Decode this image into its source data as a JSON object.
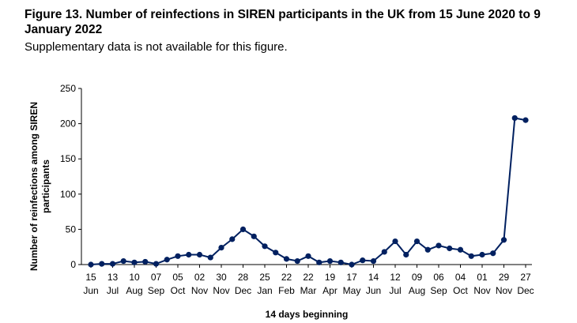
{
  "title": "Figure 13. Number of reinfections in SIREN participants in the UK from 15 June 2020 to 9 January 2022",
  "subtitle": "Supplementary data is not available for this figure.",
  "chart_data": {
    "type": "line",
    "xlabel": "14 days beginning",
    "ylabel_lines": [
      "Number of reinfections among SIREN",
      "participants"
    ],
    "ylim": [
      0,
      250
    ],
    "yticks": [
      0,
      50,
      100,
      150,
      200,
      250
    ],
    "grid": false,
    "legend": "none",
    "line_color": "#002060",
    "x_labels": [
      {
        "day": "15",
        "month": "Jun"
      },
      {
        "day": "13",
        "month": "Jul"
      },
      {
        "day": "10",
        "month": "Aug"
      },
      {
        "day": "07",
        "month": "Sep"
      },
      {
        "day": "05",
        "month": "Oct"
      },
      {
        "day": "02",
        "month": "Nov"
      },
      {
        "day": "30",
        "month": "Nov"
      },
      {
        "day": "28",
        "month": "Dec"
      },
      {
        "day": "25",
        "month": "Jan"
      },
      {
        "day": "22",
        "month": "Feb"
      },
      {
        "day": "22",
        "month": "Mar"
      },
      {
        "day": "19",
        "month": "Apr"
      },
      {
        "day": "17",
        "month": "May"
      },
      {
        "day": "14",
        "month": "Jun"
      },
      {
        "day": "12",
        "month": "Jul"
      },
      {
        "day": "09",
        "month": "Aug"
      },
      {
        "day": "06",
        "month": "Sep"
      },
      {
        "day": "04",
        "month": "Oct"
      },
      {
        "day": "01",
        "month": "Nov"
      },
      {
        "day": "29",
        "month": "Nov"
      },
      {
        "day": "27",
        "month": "Dec"
      }
    ],
    "values": [
      0,
      1,
      1,
      5,
      3,
      4,
      1,
      7,
      12,
      14,
      14,
      10,
      24,
      36,
      50,
      40,
      26,
      17,
      8,
      5,
      12,
      3,
      5,
      3,
      0,
      6,
      5,
      18,
      33,
      14,
      33,
      21,
      27,
      23,
      21,
      12,
      14,
      16,
      35,
      208,
      205
    ]
  }
}
